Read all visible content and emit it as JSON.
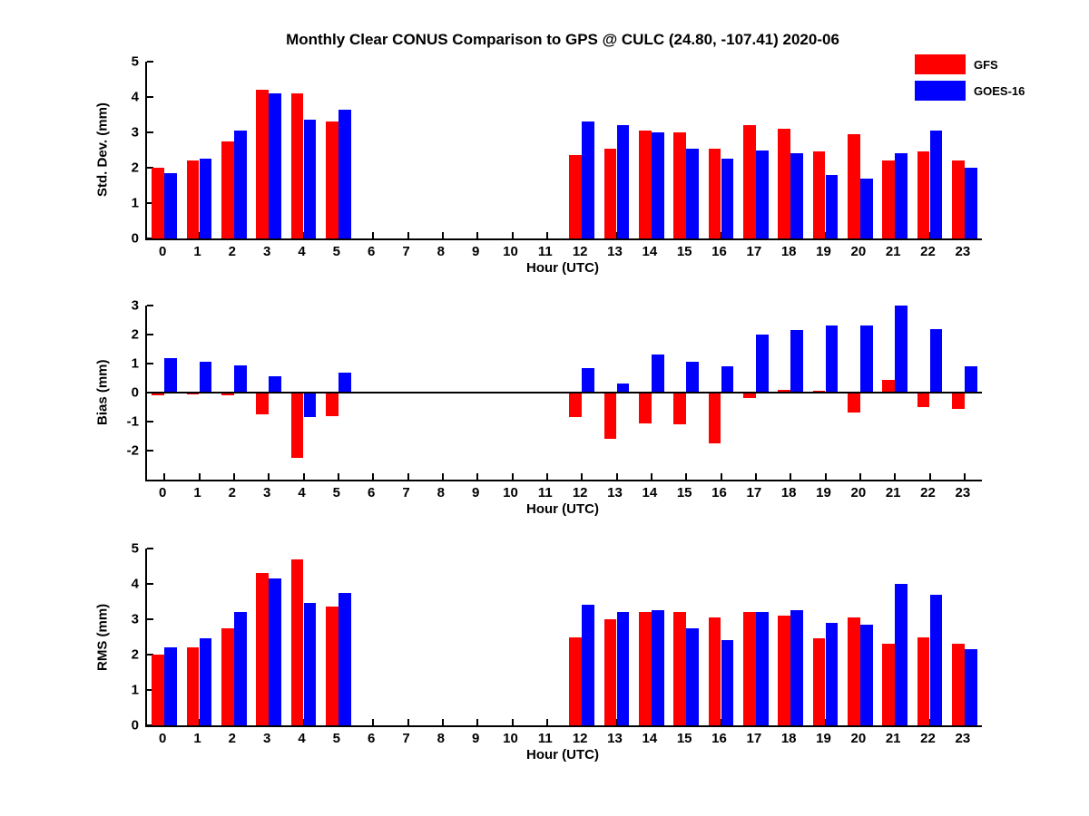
{
  "title": "Monthly Clear CONUS Comparison to GPS @ CULC (24.80, -107.41) 2020-06",
  "legend": {
    "items": [
      {
        "label": "GFS",
        "color": "#ff0000"
      },
      {
        "label": "GOES-16",
        "color": "#0000ff"
      }
    ]
  },
  "colors": {
    "gfs": "#ff0000",
    "goes16": "#0000ff",
    "axis": "#000000",
    "background": "#ffffff"
  },
  "chart_data": [
    {
      "type": "bar",
      "panel": "std-dev",
      "ylabel": "Std. Dev. (mm)",
      "xlabel": "Hour (UTC)",
      "ylim": [
        0,
        5
      ],
      "yticks": [
        0,
        1,
        2,
        3,
        4,
        5
      ],
      "categories": [
        0,
        1,
        2,
        3,
        4,
        5,
        6,
        7,
        8,
        9,
        10,
        11,
        12,
        13,
        14,
        15,
        16,
        17,
        18,
        19,
        20,
        21,
        22,
        23
      ],
      "series": [
        {
          "name": "GFS",
          "color": "#ff0000",
          "values": [
            2.0,
            2.2,
            2.75,
            4.2,
            4.1,
            3.3,
            null,
            null,
            null,
            null,
            null,
            null,
            2.35,
            2.55,
            3.05,
            3.0,
            2.55,
            3.2,
            3.1,
            2.45,
            2.95,
            2.2,
            2.45,
            2.2
          ]
        },
        {
          "name": "GOES-16",
          "color": "#0000ff",
          "values": [
            1.85,
            2.25,
            3.05,
            4.1,
            3.35,
            3.65,
            null,
            null,
            null,
            null,
            null,
            null,
            3.3,
            3.2,
            3.0,
            2.55,
            2.25,
            2.5,
            2.4,
            1.8,
            1.7,
            2.4,
            3.05,
            2.0
          ]
        }
      ],
      "legend_position": "top-right-outside",
      "grid": false
    },
    {
      "type": "bar",
      "panel": "bias",
      "ylabel": "Bias (mm)",
      "xlabel": "Hour (UTC)",
      "ylim": [
        -3,
        3
      ],
      "yticks": [
        -2,
        -1,
        0,
        1,
        2,
        3
      ],
      "categories": [
        0,
        1,
        2,
        3,
        4,
        5,
        6,
        7,
        8,
        9,
        10,
        11,
        12,
        13,
        14,
        15,
        16,
        17,
        18,
        19,
        20,
        21,
        22,
        23
      ],
      "series": [
        {
          "name": "GFS",
          "color": "#ff0000",
          "values": [
            -0.1,
            -0.05,
            -0.1,
            -0.75,
            -2.25,
            -0.8,
            null,
            null,
            null,
            null,
            null,
            null,
            -0.85,
            -1.6,
            -1.05,
            -1.1,
            -1.75,
            -0.2,
            0.1,
            0.05,
            -0.7,
            0.45,
            -0.5,
            -0.55
          ]
        },
        {
          "name": "GOES-16",
          "color": "#0000ff",
          "values": [
            1.2,
            1.05,
            0.95,
            0.55,
            -0.85,
            0.7,
            null,
            null,
            null,
            null,
            null,
            null,
            0.85,
            0.3,
            1.3,
            1.05,
            0.9,
            2.0,
            2.15,
            2.3,
            2.3,
            3.0,
            2.2,
            0.9
          ]
        }
      ],
      "zero_line": true,
      "grid": false
    },
    {
      "type": "bar",
      "panel": "rms",
      "ylabel": "RMS (mm)",
      "xlabel": "Hour (UTC)",
      "ylim": [
        0,
        5
      ],
      "yticks": [
        0,
        1,
        2,
        3,
        4,
        5
      ],
      "categories": [
        0,
        1,
        2,
        3,
        4,
        5,
        6,
        7,
        8,
        9,
        10,
        11,
        12,
        13,
        14,
        15,
        16,
        17,
        18,
        19,
        20,
        21,
        22,
        23
      ],
      "series": [
        {
          "name": "GFS",
          "color": "#ff0000",
          "values": [
            2.0,
            2.2,
            2.75,
            4.3,
            4.7,
            3.35,
            null,
            null,
            null,
            null,
            null,
            null,
            2.5,
            3.0,
            3.2,
            3.2,
            3.05,
            3.2,
            3.1,
            2.45,
            3.05,
            2.3,
            2.5,
            2.3
          ]
        },
        {
          "name": "GOES-16",
          "color": "#0000ff",
          "values": [
            2.2,
            2.45,
            3.2,
            4.15,
            3.45,
            3.75,
            null,
            null,
            null,
            null,
            null,
            null,
            3.4,
            3.2,
            3.25,
            2.75,
            2.4,
            3.2,
            3.25,
            2.9,
            2.85,
            4.0,
            3.7,
            2.15
          ]
        }
      ],
      "grid": false
    }
  ]
}
